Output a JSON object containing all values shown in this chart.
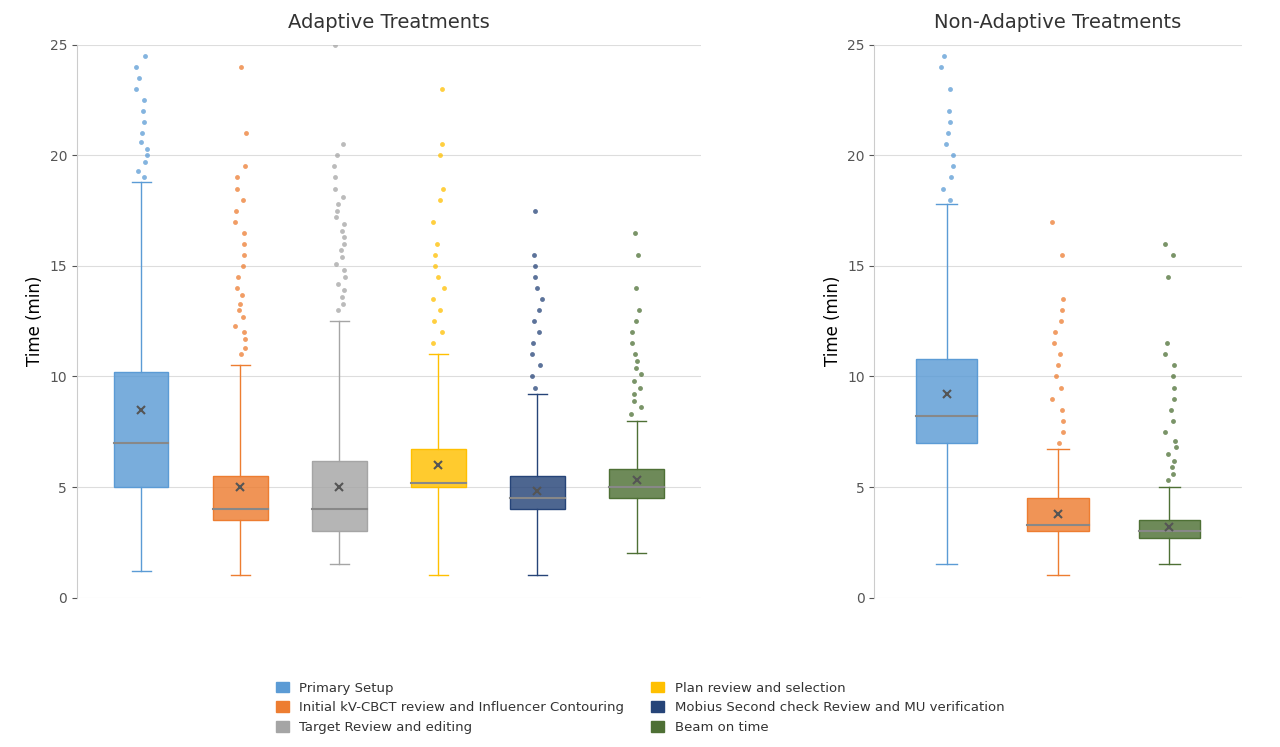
{
  "title_left": "Adaptive Treatments",
  "title_right": "Non-Adaptive Treatments",
  "ylabel": "Time (min)",
  "ylim": [
    0,
    25
  ],
  "yticks": [
    0,
    5,
    10,
    15,
    20,
    25
  ],
  "background_color": "#ffffff",
  "colors": {
    "blue": "#5B9BD5",
    "orange": "#ED7D31",
    "gray": "#A5A5A5",
    "yellow": "#FFC000",
    "darkblue": "#264478",
    "darkgreen": "#4E7035"
  },
  "adaptive": [
    {
      "label": "Primary Setup",
      "color": "#5B9BD5",
      "whislo": 1.2,
      "q1": 5.0,
      "median": 7.0,
      "mean": 8.5,
      "q3": 10.2,
      "whishi": 18.8,
      "fliers": [
        19.0,
        19.3,
        19.7,
        20.0,
        20.3,
        20.6,
        21.0,
        21.5,
        22.0,
        22.5,
        23.0,
        23.5,
        24.0,
        24.5
      ]
    },
    {
      "label": "Initial kV-CBCT review",
      "color": "#ED7D31",
      "whislo": 1.0,
      "q1": 3.5,
      "median": 4.0,
      "mean": 5.0,
      "q3": 5.5,
      "whishi": 10.5,
      "fliers": [
        11.0,
        11.3,
        11.7,
        12.0,
        12.3,
        12.7,
        13.0,
        13.3,
        13.7,
        14.0,
        14.5,
        15.0,
        15.5,
        16.0,
        16.5,
        17.0,
        17.5,
        18.0,
        18.5,
        19.0,
        19.5,
        21.0,
        24.0
      ]
    },
    {
      "label": "Target Review and editing",
      "color": "#A5A5A5",
      "whislo": 1.5,
      "q1": 3.0,
      "median": 4.0,
      "mean": 5.0,
      "q3": 6.2,
      "whishi": 12.5,
      "fliers": [
        13.0,
        13.3,
        13.6,
        13.9,
        14.2,
        14.5,
        14.8,
        15.1,
        15.4,
        15.7,
        16.0,
        16.3,
        16.6,
        16.9,
        17.2,
        17.5,
        17.8,
        18.1,
        18.5,
        19.0,
        19.5,
        20.0,
        20.5,
        25.0
      ]
    },
    {
      "label": "Plan review and selection",
      "color": "#FFC000",
      "whislo": 1.0,
      "q1": 5.0,
      "median": 5.2,
      "mean": 6.0,
      "q3": 6.7,
      "whishi": 11.0,
      "fliers": [
        11.5,
        12.0,
        12.5,
        13.0,
        13.5,
        14.0,
        14.5,
        15.0,
        15.5,
        16.0,
        17.0,
        18.0,
        18.5,
        20.0,
        20.5,
        23.0
      ]
    },
    {
      "label": "Mobius Second check",
      "color": "#264478",
      "whislo": 1.0,
      "q1": 4.0,
      "median": 4.5,
      "mean": 4.8,
      "q3": 5.5,
      "whishi": 9.2,
      "fliers": [
        9.5,
        10.0,
        10.5,
        11.0,
        11.5,
        12.0,
        12.5,
        13.0,
        13.5,
        14.0,
        14.5,
        15.0,
        15.5,
        17.5
      ]
    },
    {
      "label": "Beam on time",
      "color": "#4E7035",
      "whislo": 2.0,
      "q1": 4.5,
      "median": 5.0,
      "mean": 5.3,
      "q3": 5.8,
      "whishi": 8.0,
      "fliers": [
        8.3,
        8.6,
        8.9,
        9.2,
        9.5,
        9.8,
        10.1,
        10.4,
        10.7,
        11.0,
        11.5,
        12.0,
        12.5,
        13.0,
        14.0,
        15.5,
        16.5
      ]
    }
  ],
  "non_adaptive": [
    {
      "label": "Primary Setup",
      "color": "#5B9BD5",
      "whislo": 1.5,
      "q1": 7.0,
      "median": 8.2,
      "mean": 9.2,
      "q3": 10.8,
      "whishi": 17.8,
      "fliers": [
        18.0,
        18.5,
        19.0,
        19.5,
        20.0,
        20.5,
        21.0,
        21.5,
        22.0,
        23.0,
        24.0,
        24.5
      ]
    },
    {
      "label": "Initial kV-CBCT review",
      "color": "#ED7D31",
      "whislo": 1.0,
      "q1": 3.0,
      "median": 3.3,
      "mean": 3.8,
      "q3": 4.5,
      "whishi": 6.7,
      "fliers": [
        7.0,
        7.5,
        8.0,
        8.5,
        9.0,
        9.5,
        10.0,
        10.5,
        11.0,
        11.5,
        12.0,
        12.5,
        13.0,
        13.5,
        15.5,
        17.0
      ]
    },
    {
      "label": "Beam on time",
      "color": "#4E7035",
      "whislo": 1.5,
      "q1": 2.7,
      "median": 3.0,
      "mean": 3.2,
      "q3": 3.5,
      "whishi": 5.0,
      "fliers": [
        5.3,
        5.6,
        5.9,
        6.2,
        6.5,
        6.8,
        7.1,
        7.5,
        8.0,
        8.5,
        9.0,
        9.5,
        10.0,
        10.5,
        11.0,
        11.5,
        14.5,
        15.5,
        16.0
      ]
    }
  ],
  "legend": [
    [
      {
        "label": "Primary Setup",
        "color": "#5B9BD5"
      },
      {
        "label": "Initial kV-CBCT review and Influencer Contouring",
        "color": "#ED7D31"
      }
    ],
    [
      {
        "label": "Target Review and editing",
        "color": "#A5A5A5"
      },
      {
        "label": "Plan review and selection",
        "color": "#FFC000"
      }
    ],
    [
      {
        "label": "Mobius Second check Review and MU verification",
        "color": "#264478"
      },
      {
        "label": "Beam on time",
        "color": "#4E7035"
      }
    ]
  ]
}
